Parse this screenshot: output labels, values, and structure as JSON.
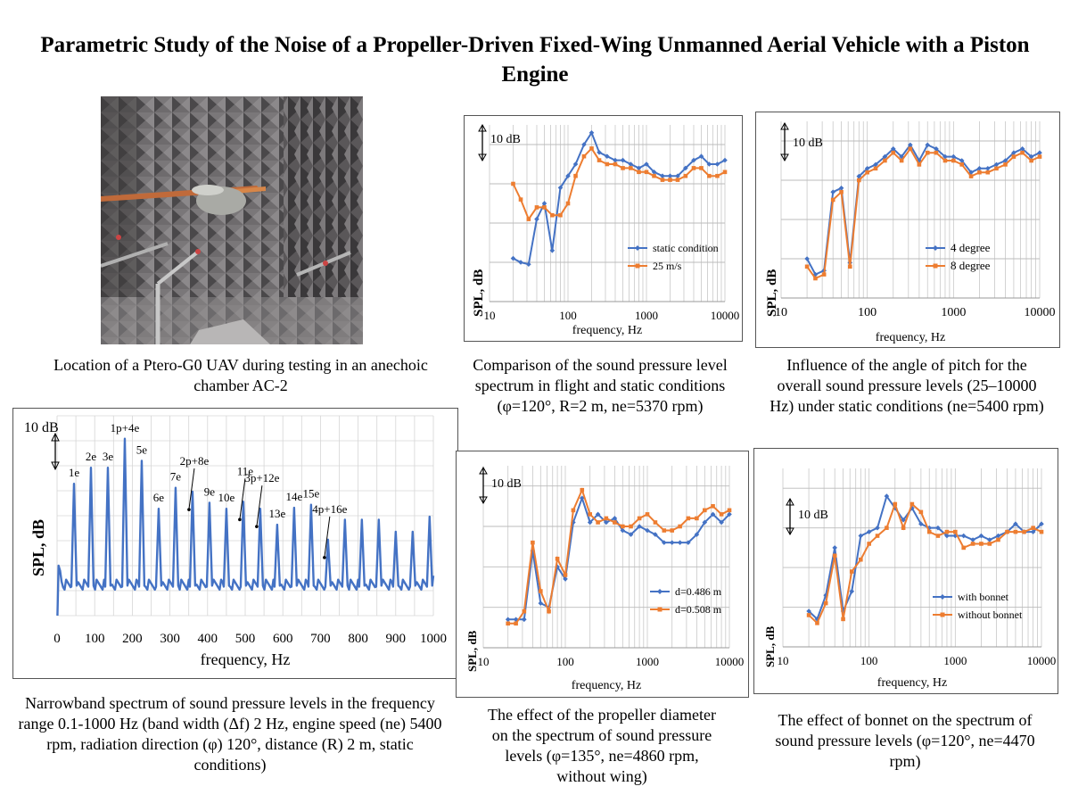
{
  "title": "Parametric Study of the Noise of a Propeller-Driven Fixed-Wing Unmanned Aerial Vehicle with a Piston Engine",
  "captions": {
    "photo": "Location of a Ptero-G0 UAV during testing in an anechoic chamber AC-2",
    "narrowband": "Narrowband spectrum of sound pressure levels in the frequency range 0.1-1000 Hz (band width (Δf) 2 Hz, engine speed (ne) 5400 rpm, radiation direction (φ) 120°, distance (R) 2 m, static conditions)",
    "flight": "Comparison of the sound pressure level spectrum in flight and static conditions (φ=120°, R=2 m, ne=5370 rpm)",
    "pitch": "Influence of the angle of pitch for the overall sound pressure levels (25–10000 Hz) under static conditions (ne=5400 rpm)",
    "diameter": "The effect of the propeller diameter on the spectrum of sound pressure levels (φ=135°, ne=4860 rpm, without wing)",
    "bonnet": "The effect of bonnet on the spectrum of sound pressure levels (φ=120°, ne=4470 rpm)"
  },
  "colors": {
    "blue": "#4472C4",
    "orange": "#ED7D31",
    "grid": "#c8c8c8"
  },
  "chart_data": [
    {
      "id": "narrowband",
      "type": "line",
      "xlabel": "frequency, Hz",
      "ylabel": "SPL, dB",
      "scale_label": "10 dB",
      "xlim": [
        0,
        1000
      ],
      "xticks": [
        0,
        100,
        200,
        300,
        400,
        500,
        600,
        700,
        800,
        900,
        1000
      ],
      "grid": true,
      "harmonics": [
        {
          "label": "1e",
          "x": 45,
          "peak": 13.2
        },
        {
          "label": "2e",
          "x": 90,
          "peak": 14.8
        },
        {
          "label": "3e",
          "x": 135,
          "peak": 14.8
        },
        {
          "label": "1p+4e",
          "x": 180,
          "peak": 17.7
        },
        {
          "label": "5e",
          "x": 225,
          "peak": 15.5
        },
        {
          "label": "6e",
          "x": 270,
          "peak": 10.7
        },
        {
          "label": "7e",
          "x": 315,
          "peak": 12.8
        },
        {
          "label": "2p+8e",
          "x": 360,
          "peak": 12.4
        },
        {
          "label": "9e",
          "x": 405,
          "peak": 11.3
        },
        {
          "label": "10e",
          "x": 450,
          "peak": 10.7
        },
        {
          "label": "11e",
          "x": 495,
          "peak": 11.4
        },
        {
          "label": "3p+12e",
          "x": 540,
          "peak": 10.7
        },
        {
          "label": "13e",
          "x": 585,
          "peak": 9.1
        },
        {
          "label": "14e",
          "x": 630,
          "peak": 10.8
        },
        {
          "label": "15e",
          "x": 675,
          "peak": 11.1
        },
        {
          "label": "4p+16e",
          "x": 720,
          "peak": 7.6
        },
        {
          "label": "",
          "x": 765,
          "peak": 9.6
        },
        {
          "label": "",
          "x": 810,
          "peak": 9.6
        },
        {
          "label": "",
          "x": 855,
          "peak": 9.6
        },
        {
          "label": "",
          "x": 900,
          "peak": 8.4
        },
        {
          "label": "",
          "x": 945,
          "peak": 8.4
        },
        {
          "label": "",
          "x": 990,
          "peak": 9.9
        }
      ],
      "arrows": [
        "2p+8e",
        "11e",
        "3p+12e",
        "4p+16e"
      ],
      "baseline": 2.6
    },
    {
      "id": "flight",
      "type": "line",
      "xlog": true,
      "xlabel": "frequency, Hz",
      "ylabel": "SPL, dB",
      "scale_label": "10 dB",
      "xticks": [
        10,
        100,
        1000,
        10000
      ],
      "grid": true,
      "legend": "right",
      "series": [
        {
          "name": "static condition",
          "color": "#4472C4",
          "x": [
            20,
            25,
            31.5,
            40,
            50,
            63,
            80,
            100,
            125,
            160,
            200,
            250,
            315,
            400,
            500,
            630,
            800,
            1000,
            1250,
            1600,
            2000,
            2500,
            3150,
            4000,
            5000,
            6300,
            8000,
            10000
          ],
          "y": [
            6,
            5,
            4.5,
            16,
            20,
            8,
            24,
            27,
            30,
            35,
            38,
            33,
            32,
            31,
            31,
            30,
            29,
            30,
            28,
            27,
            27,
            27,
            29,
            31,
            32,
            30,
            30,
            31
          ]
        },
        {
          "name": "25 m/s",
          "color": "#ED7D31",
          "x": [
            20,
            25,
            31.5,
            40,
            50,
            63,
            80,
            100,
            125,
            160,
            200,
            250,
            315,
            400,
            500,
            630,
            800,
            1000,
            1250,
            1600,
            2000,
            2500,
            3150,
            4000,
            5000,
            6300,
            8000,
            10000
          ],
          "y": [
            25,
            21,
            16,
            19,
            19,
            17,
            17,
            20,
            27,
            32,
            34,
            31,
            30,
            30,
            29,
            29,
            28,
            28,
            27,
            26,
            26,
            26,
            27,
            29,
            29,
            27,
            27,
            28
          ]
        }
      ]
    },
    {
      "id": "pitch",
      "type": "line",
      "xlog": true,
      "xlabel": "frequency, Hz",
      "ylabel": "SPL, dB",
      "scale_label": "10 dB",
      "xticks": [
        10,
        100,
        1000,
        10000
      ],
      "grid": true,
      "legend": "right",
      "series": [
        {
          "name": "4 degree",
          "color": "#4472C4",
          "x": [
            20,
            25,
            31.5,
            40,
            50,
            63,
            80,
            100,
            125,
            160,
            200,
            250,
            315,
            400,
            500,
            630,
            800,
            1000,
            1250,
            1600,
            2000,
            2500,
            3150,
            4000,
            5000,
            6300,
            8000,
            10000
          ],
          "y": [
            10,
            6,
            7,
            27,
            28,
            9,
            31,
            33,
            34,
            36,
            38,
            36,
            39,
            35,
            39,
            38,
            36,
            36,
            35,
            32,
            33,
            33,
            34,
            35,
            37,
            38,
            36,
            37
          ]
        },
        {
          "name": "8 degree",
          "color": "#ED7D31",
          "x": [
            20,
            25,
            31.5,
            40,
            50,
            63,
            80,
            100,
            125,
            160,
            200,
            250,
            315,
            400,
            500,
            630,
            800,
            1000,
            1250,
            1600,
            2000,
            2500,
            3150,
            4000,
            5000,
            6300,
            8000,
            10000
          ],
          "y": [
            8,
            5,
            6,
            25,
            27,
            8,
            30,
            32,
            33,
            35,
            37,
            35,
            38,
            34,
            37,
            37,
            35,
            35,
            34,
            31,
            32,
            32,
            33,
            34,
            36,
            37,
            35,
            36
          ]
        }
      ]
    },
    {
      "id": "diameter",
      "type": "line",
      "xlog": true,
      "xlabel": "frequency, Hz",
      "ylabel": "SPL, dB",
      "scale_label": "10 dB",
      "xticks": [
        10,
        100,
        1000,
        10000
      ],
      "grid": true,
      "legend": "bottom-right",
      "series": [
        {
          "name": "d=0.486 m",
          "color": "#4472C4",
          "x": [
            20,
            25,
            31.5,
            40,
            50,
            63,
            80,
            100,
            125,
            160,
            200,
            250,
            315,
            400,
            500,
            630,
            800,
            1000,
            1250,
            1600,
            2000,
            2500,
            3150,
            4000,
            5000,
            6300,
            8000,
            10000
          ],
          "y": [
            7,
            7,
            7,
            24,
            11,
            10,
            20,
            17,
            31,
            37,
            31,
            33,
            31,
            32,
            29,
            28,
            30,
            29,
            28,
            26,
            26,
            26,
            26,
            28,
            31,
            33,
            31,
            33
          ]
        },
        {
          "name": "d=0.508 m",
          "color": "#ED7D31",
          "x": [
            20,
            25,
            31.5,
            40,
            50,
            63,
            80,
            100,
            125,
            160,
            200,
            250,
            315,
            400,
            500,
            630,
            800,
            1000,
            1250,
            1600,
            2000,
            2500,
            3150,
            4000,
            5000,
            6300,
            8000,
            10000
          ],
          "y": [
            6,
            6,
            9,
            26,
            14,
            9,
            22,
            18,
            34,
            39,
            33,
            31,
            32,
            31,
            30,
            30,
            32,
            33,
            31,
            29,
            29,
            30,
            32,
            32,
            34,
            35,
            33,
            34
          ]
        }
      ]
    },
    {
      "id": "bonnet",
      "type": "line",
      "xlog": true,
      "xlabel": "frequency, Hz",
      "ylabel": "SPL, dB",
      "scale_label": "10 dB",
      "xticks": [
        10,
        100,
        1000,
        10000
      ],
      "grid": true,
      "legend": "bottom-right",
      "series": [
        {
          "name": "with bonnet",
          "color": "#4472C4",
          "x": [
            20,
            25,
            31.5,
            40,
            50,
            63,
            80,
            100,
            125,
            160,
            200,
            250,
            315,
            400,
            500,
            630,
            800,
            1000,
            1250,
            1600,
            2000,
            2500,
            3150,
            4000,
            5000,
            6300,
            8000,
            10000
          ],
          "y": [
            9,
            7,
            13,
            25,
            9,
            14,
            28,
            29,
            30,
            38,
            35,
            32,
            35,
            31,
            30,
            30,
            28,
            28,
            28,
            27,
            28,
            27,
            28,
            29,
            31,
            29,
            29,
            31
          ]
        },
        {
          "name": "without bonnet",
          "color": "#ED7D31",
          "x": [
            20,
            25,
            31.5,
            40,
            50,
            63,
            80,
            100,
            125,
            160,
            200,
            250,
            315,
            400,
            500,
            630,
            800,
            1000,
            1250,
            1600,
            2000,
            2500,
            3150,
            4000,
            5000,
            6300,
            8000,
            10000
          ],
          "y": [
            8,
            6,
            11,
            23,
            7,
            19,
            22,
            26,
            28,
            30,
            36,
            30,
            36,
            34,
            29,
            28,
            29,
            29,
            25,
            26,
            26,
            26,
            27,
            29,
            29,
            29,
            30,
            29
          ]
        }
      ]
    }
  ]
}
